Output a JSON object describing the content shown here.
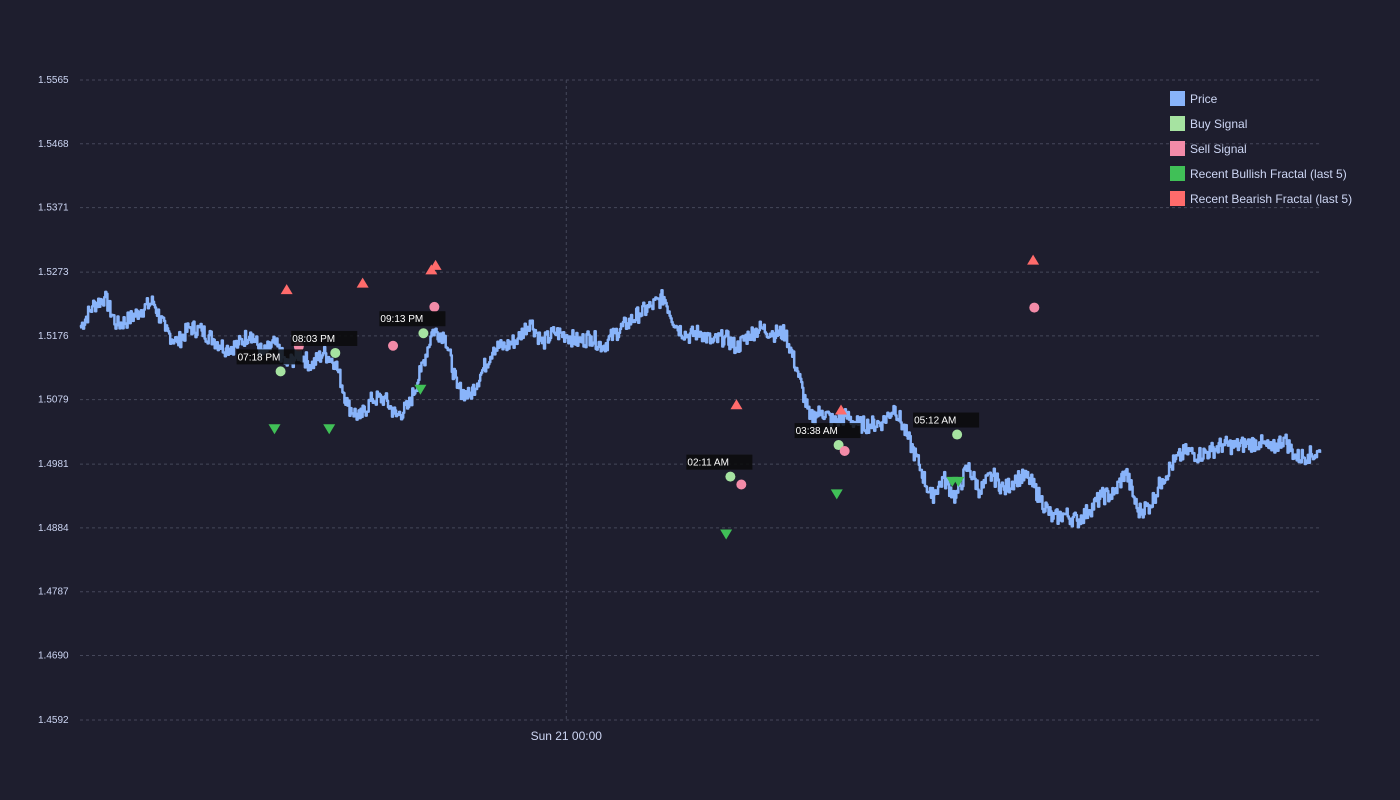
{
  "chart_data": {
    "type": "line",
    "title": "",
    "xlabel": "",
    "ylabel": "",
    "ylim": [
      1.4592,
      1.5565
    ],
    "yticks": [
      "1.4592",
      "1.4690",
      "1.4787",
      "1.4884",
      "1.4981",
      "1.5079",
      "1.5176",
      "1.5273",
      "1.5371",
      "1.5468",
      "1.5565"
    ],
    "xticks": [
      {
        "label": "Sun 21 00:00",
        "hour": 0
      }
    ],
    "x_range_hours": [
      -8.0,
      12.4
    ],
    "grid": true,
    "legend_position": "top-right",
    "colors": {
      "background": "#1e1e2e",
      "price": "#89b4fa",
      "buy": "#a6e3a1",
      "sell": "#f38ba8",
      "bullish_fractal": "#40c057",
      "bearish_fractal": "#ff6b6b",
      "text": "#cdd6f4",
      "grid": "#45475a"
    },
    "legend": [
      {
        "label": "Price",
        "color": "#89b4fa"
      },
      {
        "label": "Buy Signal",
        "color": "#a6e3a1"
      },
      {
        "label": "Sell Signal",
        "color": "#f38ba8"
      },
      {
        "label": "Recent Bullish Fractal (last 5)",
        "color": "#40c057"
      },
      {
        "label": "Recent Bearish Fractal (last 5)",
        "color": "#ff6b6b"
      }
    ],
    "series": [
      {
        "name": "Price",
        "points": [
          [
            -8.0,
            1.5189
          ],
          [
            -7.8,
            1.5221
          ],
          [
            -7.6,
            1.5235
          ],
          [
            -7.4,
            1.5192
          ],
          [
            -7.2,
            1.5201
          ],
          [
            -7.0,
            1.5215
          ],
          [
            -6.8,
            1.5228
          ],
          [
            -6.6,
            1.5184
          ],
          [
            -6.4,
            1.5166
          ],
          [
            -6.2,
            1.5189
          ],
          [
            -6.0,
            1.5184
          ],
          [
            -5.8,
            1.517
          ],
          [
            -5.6,
            1.5157
          ],
          [
            -5.4,
            1.5163
          ],
          [
            -5.2,
            1.5181
          ],
          [
            -5.0,
            1.5148
          ],
          [
            -4.8,
            1.5165
          ],
          [
            -4.6,
            1.5131
          ],
          [
            -4.4,
            1.515
          ],
          [
            -4.2,
            1.5131
          ],
          [
            -4.0,
            1.515
          ],
          [
            -3.8,
            1.5136
          ],
          [
            -3.6,
            1.507
          ],
          [
            -3.4,
            1.5051
          ],
          [
            -3.2,
            1.508
          ],
          [
            -3.0,
            1.5081
          ],
          [
            -2.8,
            1.5054
          ],
          [
            -2.6,
            1.5068
          ],
          [
            -2.4,
            1.5122
          ],
          [
            -2.2,
            1.5185
          ],
          [
            -2.0,
            1.5176
          ],
          [
            -1.8,
            1.5097
          ],
          [
            -1.6,
            1.5084
          ],
          [
            -1.4,
            1.512
          ],
          [
            -1.2,
            1.5158
          ],
          [
            -1.0,
            1.516
          ],
          [
            -0.8,
            1.5172
          ],
          [
            -0.6,
            1.5199
          ],
          [
            -0.4,
            1.5165
          ],
          [
            -0.2,
            1.5181
          ],
          [
            0.0,
            1.5177
          ],
          [
            0.2,
            1.5167
          ],
          [
            0.4,
            1.5175
          ],
          [
            0.6,
            1.516
          ],
          [
            0.8,
            1.518
          ],
          [
            1.0,
            1.5195
          ],
          [
            1.2,
            1.521
          ],
          [
            1.4,
            1.5221
          ],
          [
            1.6,
            1.5235
          ],
          [
            1.8,
            1.5191
          ],
          [
            2.0,
            1.5176
          ],
          [
            2.2,
            1.5182
          ],
          [
            2.4,
            1.5166
          ],
          [
            2.6,
            1.5174
          ],
          [
            2.8,
            1.5158
          ],
          [
            3.0,
            1.5178
          ],
          [
            3.2,
            1.5188
          ],
          [
            3.4,
            1.518
          ],
          [
            3.6,
            1.518
          ],
          [
            3.8,
            1.5122
          ],
          [
            4.0,
            1.505
          ],
          [
            4.2,
            1.5062
          ],
          [
            4.4,
            1.5045
          ],
          [
            4.6,
            1.5054
          ],
          [
            4.8,
            1.5041
          ],
          [
            5.0,
            1.5041
          ],
          [
            5.2,
            1.5045
          ],
          [
            5.4,
            1.5068
          ],
          [
            5.6,
            1.5024
          ],
          [
            5.8,
            1.498
          ],
          [
            6.0,
            1.493
          ],
          [
            6.2,
            1.496
          ],
          [
            6.4,
            1.493
          ],
          [
            6.6,
            1.4978
          ],
          [
            6.8,
            1.494
          ],
          [
            7.0,
            1.4965
          ],
          [
            7.2,
            1.4942
          ],
          [
            7.4,
            1.496
          ],
          [
            7.6,
            1.496
          ],
          [
            7.8,
            1.4928
          ],
          [
            8.0,
            1.4898
          ],
          [
            8.2,
            1.4905
          ],
          [
            8.4,
            1.4895
          ],
          [
            8.6,
            1.4911
          ],
          [
            8.8,
            1.4932
          ],
          [
            9.0,
            1.4935
          ],
          [
            9.2,
            1.4971
          ],
          [
            9.4,
            1.4909
          ],
          [
            9.6,
            1.4918
          ],
          [
            9.8,
            1.4958
          ],
          [
            10.0,
            1.4985
          ],
          [
            10.2,
            1.5001
          ],
          [
            10.4,
            1.4995
          ],
          [
            10.6,
            1.5001
          ],
          [
            10.8,
            1.5011
          ],
          [
            11.0,
            1.5008
          ],
          [
            11.2,
            1.5012
          ],
          [
            11.4,
            1.5014
          ],
          [
            11.6,
            1.5002
          ],
          [
            11.8,
            1.5021
          ],
          [
            12.0,
            1.4991
          ],
          [
            12.2,
            1.4995
          ],
          [
            12.4,
            1.4998
          ]
        ]
      }
    ],
    "buy_signals": [
      {
        "time": "07:18 PM",
        "hour": -4.7,
        "price": 1.5122
      },
      {
        "time": "08:03 PM",
        "hour": -3.8,
        "price": 1.515
      },
      {
        "time": "09:13 PM",
        "hour": -2.35,
        "price": 1.518
      },
      {
        "time": "02:11 AM",
        "hour": 2.7,
        "price": 1.4962
      },
      {
        "time": "03:38 AM",
        "hour": 4.48,
        "price": 1.501
      },
      {
        "time": "05:12 AM",
        "hour": 6.43,
        "price": 1.5026
      }
    ],
    "sell_signals": [
      {
        "hour": -4.4,
        "price": 1.516
      },
      {
        "hour": -2.85,
        "price": 1.5161
      },
      {
        "hour": -2.17,
        "price": 1.522
      },
      {
        "hour": 2.88,
        "price": 1.495
      },
      {
        "hour": 4.58,
        "price": 1.5001
      },
      {
        "hour": 7.7,
        "price": 1.5219
      }
    ],
    "bullish_fractals": [
      {
        "hour": -4.8,
        "price": 1.5034
      },
      {
        "hour": -3.9,
        "price": 1.5034
      },
      {
        "hour": -2.4,
        "price": 1.5094
      },
      {
        "hour": 2.63,
        "price": 1.4874
      },
      {
        "hour": 4.45,
        "price": 1.4935
      },
      {
        "hour": 6.35,
        "price": 1.4954
      },
      {
        "hour": 6.45,
        "price": 1.4954
      }
    ],
    "bearish_fractals": [
      {
        "hour": -4.6,
        "price": 1.5247
      },
      {
        "hour": -3.35,
        "price": 1.5257
      },
      {
        "hour": -2.22,
        "price": 1.5277
      },
      {
        "hour": -2.15,
        "price": 1.5284
      },
      {
        "hour": 2.8,
        "price": 1.5072
      },
      {
        "hour": 4.52,
        "price": 1.5064
      },
      {
        "hour": 7.68,
        "price": 1.5292
      }
    ]
  }
}
